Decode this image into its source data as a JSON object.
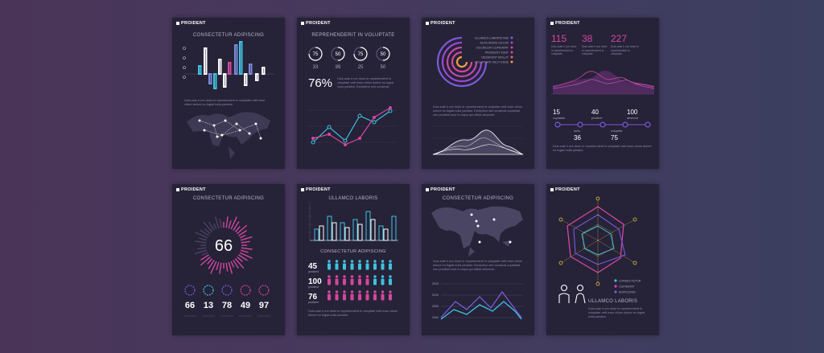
{
  "brand": "PROIDENT",
  "cards": {
    "c1": {
      "title": "CONSECTETUR ADIPISCING",
      "body": "Duis aute ir ure dolor in reprehenderit in voluptate velit esse cillum dolore eu fugiat nulla pariatur."
    },
    "c2": {
      "title": "REPREHENDERIT IN VOLUPTATE",
      "gauges": [
        {
          "val": "75",
          "sub": "33"
        },
        {
          "val": "50",
          "sub": "99"
        },
        {
          "val": "75",
          "sub": "25"
        },
        {
          "val": "50",
          "sub": "50"
        }
      ],
      "percent": "76%",
      "body": "Duis aute ir ure dolor in reprehenderit in voluptate velit esse cillum dolore eu fugiat nulla pariatur. Excepteur sint occaecat."
    },
    "c3": {
      "legend": [
        "ULLAMCO LABORIS NISI",
        "AUTE IRURE DOLOR",
        "OCCAECAT CUPIDATAT",
        "PROIDENT SUNT",
        "DESERUNT MOLLIT",
        "VOLUPTATE VELIT ESSE"
      ],
      "body": "Duis aute ir ure dolor in reprehenderit in voluptate velit esse cillum dolore eu fugiat nulla pariatur. Excepteur sint occaecat cupidatat non proident sunt in culpa qui officia deserunt."
    },
    "c4": {
      "stats": [
        "115",
        "38",
        "227"
      ],
      "stat_body": "Duis aute ir ure dolor in reprehenderit in voluptate",
      "milestones": [
        {
          "val": "15",
          "label": "cupidatat"
        },
        {
          "val": "40",
          "label": "proident"
        },
        {
          "val": "100",
          "label": "deserunt"
        }
      ],
      "milestones2": [
        {
          "val": "36",
          "label": "dolor"
        },
        {
          "val": "75",
          "label": "voluptate"
        }
      ],
      "body": "Duis aute ir ure dolor in reprehenderit in voluptate velit esse cillum dolore eu fugiat nulla pariatur."
    },
    "c5": {
      "title": "CONSECTETUR ADIPISCING",
      "big": "66",
      "nums": [
        "66",
        "13",
        "78",
        "49",
        "97"
      ]
    },
    "c6": {
      "title": "ULLAMCO LABORIS",
      "subtitle": "CONSECTETUR ADIPISCING",
      "people": [
        {
          "val": "45",
          "label": "proident"
        },
        {
          "val": "100",
          "label": "proident"
        },
        {
          "val": "76",
          "label": "proident"
        }
      ],
      "body": "Duis aute ir ure dolor in reprehenderit in voluptate velit esse cillum dolore eu fugiat nulla pariatur."
    },
    "c7": {
      "title": "CONSECTETUR ADIPISCING",
      "body": "Duis aute ir ure dolor in reprehenderit in voluptate velit esse cillum dolore eu fugiat nulla pariatur. Excepteur sint occaecat cupidatat non proident sunt in culpa qui officia deserunt.",
      "years": [
        "2000",
        "2005",
        "2010",
        "2015"
      ]
    },
    "c8": {
      "legend": [
        "CONSECTETUR",
        "CUPIDATAT",
        "ADIPISCING"
      ],
      "title": "ULLAMCO LABORIS",
      "body": "Duis aute ir ure dolor in reprehenderit in voluptate velit esse cillum dolore eu fugiat nulla pariatur."
    }
  },
  "colors": {
    "pink": "#d4479e",
    "cyan": "#3fc2de",
    "purple": "#7a5ad8",
    "orange": "#f0a040",
    "yellow": "#e2c23a"
  }
}
